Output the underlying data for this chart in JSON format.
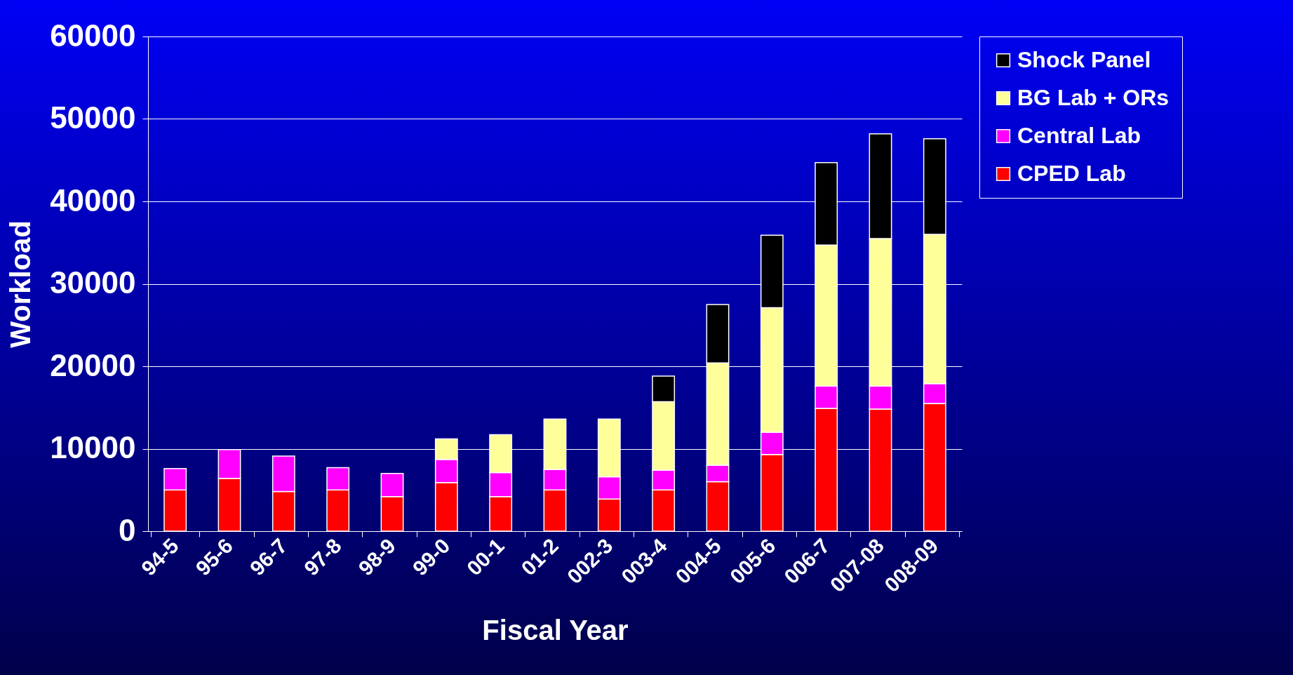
{
  "chart_data": {
    "type": "bar",
    "stacked": true,
    "xlabel": "Fiscal Year",
    "ylabel": "Workload",
    "categories": [
      "94-5",
      "95-6",
      "96-7",
      "97-8",
      "98-9",
      "99-0",
      "00-1",
      "01-2",
      "002-3",
      "003-4",
      "004-5",
      "005-6",
      "006-7",
      "007-08",
      "008-09"
    ],
    "series": [
      {
        "name": "CPED Lab",
        "color": "#ff0000",
        "values": [
          5000,
          6400,
          4800,
          5000,
          4200,
          5900,
          4200,
          5000,
          3900,
          5000,
          6000,
          9300,
          14900,
          14800,
          15500
        ]
      },
      {
        "name": "Central Lab",
        "color": "#ff00ff",
        "values": [
          2600,
          3500,
          4300,
          2700,
          2800,
          2800,
          2900,
          2500,
          2700,
          2400,
          2000,
          2700,
          2700,
          2800,
          2400
        ]
      },
      {
        "name": "BG Lab + ORs",
        "color": "#ffff99",
        "values": [
          null,
          null,
          null,
          null,
          null,
          2500,
          4600,
          6100,
          7000,
          8300,
          12400,
          15100,
          17100,
          17900,
          18100
        ]
      },
      {
        "name": "Shock Panel",
        "color": "#000000",
        "values": [
          null,
          null,
          null,
          null,
          null,
          null,
          null,
          null,
          null,
          3100,
          7100,
          8800,
          10000,
          12700,
          11600
        ]
      }
    ],
    "ylim": [
      0,
      60000
    ],
    "yticks": [
      0,
      10000,
      20000,
      30000,
      40000,
      50000,
      60000
    ],
    "grid": "y",
    "legend": "right"
  }
}
